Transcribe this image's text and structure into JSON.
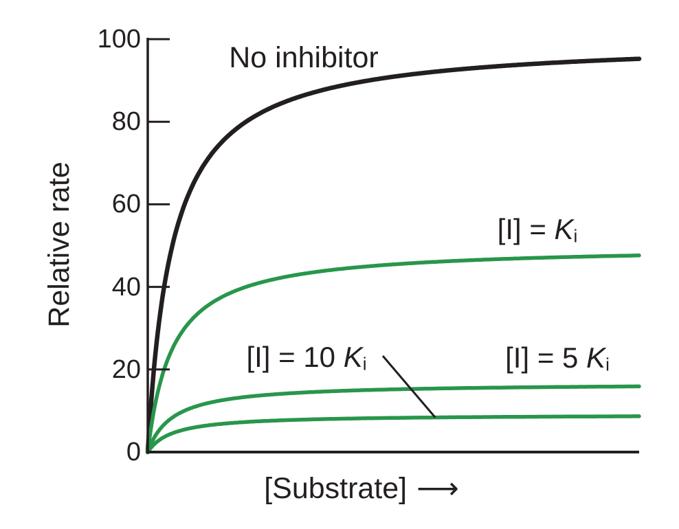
{
  "figure": {
    "y_axis": {
      "label": "Relative rate"
    },
    "x_axis": {
      "label": "[Substrate]",
      "arrow": "⟶"
    }
  },
  "annotations": {
    "no_inhibitor": {
      "text": "No inhibitor"
    },
    "ki": {
      "prefix": "[I] = ",
      "symbol": "K",
      "subscript": "i"
    },
    "ki10": {
      "prefix": "[I] = 10 ",
      "symbol": "K",
      "subscript": "i"
    },
    "ki5": {
      "prefix": "[I] = 5 ",
      "symbol": "K",
      "subscript": "i"
    }
  },
  "colors": {
    "ink": "#231f20",
    "green": "#28964b",
    "background": "#ffffff"
  },
  "chart_data": {
    "type": "line",
    "title": "",
    "xlabel": "[Substrate]",
    "ylabel": "Relative rate",
    "xlim_relative": [
      0,
      1
    ],
    "ylim": [
      0,
      100
    ],
    "yticks": [
      0,
      20,
      40,
      60,
      80,
      100
    ],
    "xticks": [],
    "grid": false,
    "legend": "inline curve labels",
    "model": "Michaelis-Menten v = Vmax*S/(Km+S); noncompetitive inhibition (Km unchanged, Vmax reduced)",
    "km_relative": 0.05,
    "series": [
      {
        "name": "No inhibitor",
        "vmax": 100,
        "end_value": 95.2,
        "color": "#231f20"
      },
      {
        "name": "[I] = Ki",
        "vmax": 50,
        "end_value": 47.6,
        "color": "#28964b"
      },
      {
        "name": "[I] = 5 Ki",
        "vmax": 16.7,
        "end_value": 15.9,
        "color": "#28964b"
      },
      {
        "name": "[I] = 10 Ki",
        "vmax": 9.1,
        "end_value": 8.7,
        "color": "#28964b"
      }
    ],
    "annotation_pointer": {
      "from_label": "[I] = 10 Ki",
      "to_series": "[I] = 10 Ki",
      "attaches_at_s": 0.585
    }
  }
}
